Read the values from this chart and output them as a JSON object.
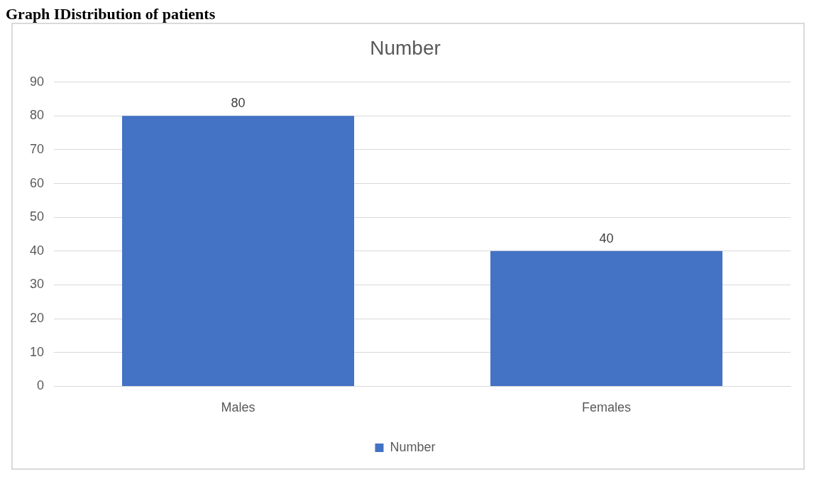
{
  "chart_data": {
    "type": "bar",
    "title": "Number",
    "annotations": [
      "Graph IDistribution of patients"
    ],
    "categories": [
      "Males",
      "Females"
    ],
    "series": [
      {
        "name": "Number",
        "color": "#4472c4",
        "values": [
          80,
          40
        ]
      }
    ],
    "ylim": [
      0,
      90
    ],
    "yticks": [
      0,
      10,
      20,
      30,
      40,
      50,
      60,
      70,
      80,
      90
    ],
    "grid": "y",
    "legend": "bottom",
    "data_labels": true
  }
}
